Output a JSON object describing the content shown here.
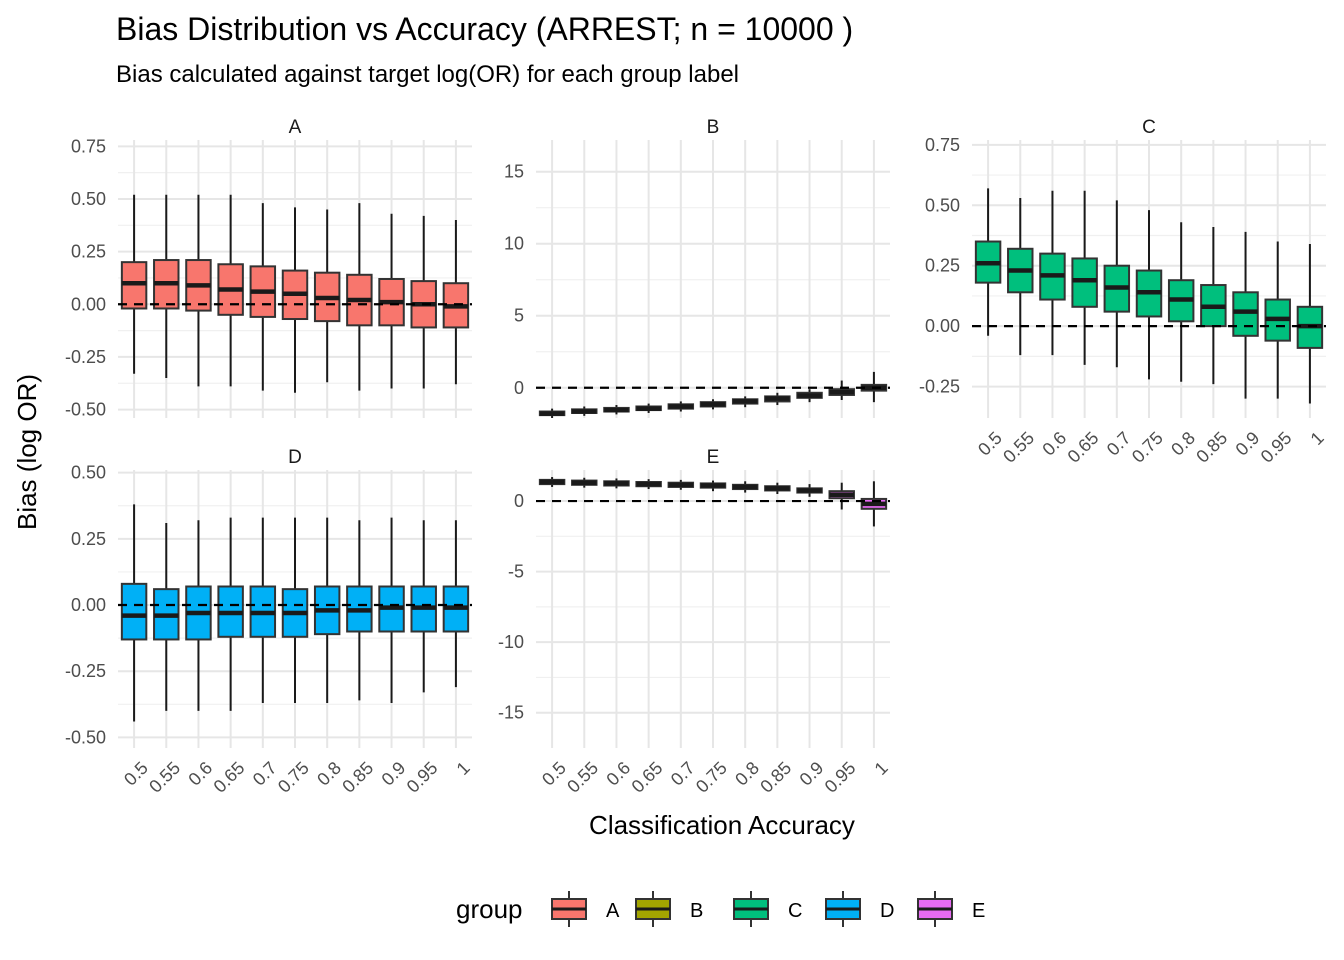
{
  "chart_data": {
    "type": "boxplot",
    "title": "Bias Distribution vs Accuracy (ARREST; n = 10000 )",
    "subtitle": "Bias calculated against target log(OR) for each group label",
    "xlabel": "Classification Accuracy",
    "ylabel": "Bias (log OR)",
    "categories": [
      "0.5",
      "0.55",
      "0.6",
      "0.65",
      "0.7",
      "0.75",
      "0.8",
      "0.85",
      "0.9",
      "0.95",
      "1"
    ],
    "reference_line": 0,
    "grid": true,
    "legend": {
      "title": "group",
      "placement": "bottom",
      "items": [
        {
          "label": "A",
          "color": "#F8766D"
        },
        {
          "label": "B",
          "color": "#A3A500"
        },
        {
          "label": "C",
          "color": "#00BF7D"
        },
        {
          "label": "D",
          "color": "#00B0F6"
        },
        {
          "label": "E",
          "color": "#E76BF3"
        }
      ]
    },
    "facets": [
      {
        "label": "A",
        "ylim": [
          -0.54,
          0.78
        ],
        "yticks": [
          "-0.50",
          "-0.25",
          "0.00",
          "0.25",
          "0.50",
          "0.75"
        ],
        "show_x_ticks": false,
        "boxes": [
          {
            "group": "A",
            "lower": -0.33,
            "q1": -0.02,
            "median": 0.1,
            "q3": 0.2,
            "upper": 0.52
          },
          {
            "group": "A",
            "lower": -0.35,
            "q1": -0.02,
            "median": 0.1,
            "q3": 0.21,
            "upper": 0.52
          },
          {
            "group": "A",
            "lower": -0.39,
            "q1": -0.03,
            "median": 0.09,
            "q3": 0.21,
            "upper": 0.52
          },
          {
            "group": "A",
            "lower": -0.39,
            "q1": -0.05,
            "median": 0.07,
            "q3": 0.19,
            "upper": 0.52
          },
          {
            "group": "A",
            "lower": -0.41,
            "q1": -0.06,
            "median": 0.06,
            "q3": 0.18,
            "upper": 0.48
          },
          {
            "group": "A",
            "lower": -0.42,
            "q1": -0.07,
            "median": 0.05,
            "q3": 0.16,
            "upper": 0.46
          },
          {
            "group": "A",
            "lower": -0.37,
            "q1": -0.08,
            "median": 0.03,
            "q3": 0.15,
            "upper": 0.45
          },
          {
            "group": "A",
            "lower": -0.41,
            "q1": -0.1,
            "median": 0.02,
            "q3": 0.14,
            "upper": 0.48
          },
          {
            "group": "A",
            "lower": -0.4,
            "q1": -0.1,
            "median": 0.01,
            "q3": 0.12,
            "upper": 0.43
          },
          {
            "group": "A",
            "lower": -0.4,
            "q1": -0.11,
            "median": 0.0,
            "q3": 0.11,
            "upper": 0.42
          },
          {
            "group": "A",
            "lower": -0.38,
            "q1": -0.11,
            "median": -0.01,
            "q3": 0.1,
            "upper": 0.4
          }
        ]
      },
      {
        "label": "B",
        "ylim": [
          -2.1,
          17.2
        ],
        "yticks": [
          "0",
          "5",
          "10",
          "15"
        ],
        "show_x_ticks": false,
        "boxes": [
          {
            "group": "B",
            "lower": -2.1,
            "q1": -1.9,
            "median": -1.8,
            "q3": -1.65,
            "upper": -1.45
          },
          {
            "group": "B",
            "lower": -1.95,
            "q1": -1.75,
            "median": -1.65,
            "q3": -1.5,
            "upper": -1.3
          },
          {
            "group": "B",
            "lower": -1.85,
            "q1": -1.65,
            "median": -1.55,
            "q3": -1.4,
            "upper": -1.2
          },
          {
            "group": "B",
            "lower": -1.75,
            "q1": -1.55,
            "median": -1.45,
            "q3": -1.3,
            "upper": -1.1
          },
          {
            "group": "B",
            "lower": -1.65,
            "q1": -1.45,
            "median": -1.3,
            "q3": -1.15,
            "upper": -0.95
          },
          {
            "group": "B",
            "lower": -1.5,
            "q1": -1.3,
            "median": -1.15,
            "q3": -1.0,
            "upper": -0.8
          },
          {
            "group": "B",
            "lower": -1.35,
            "q1": -1.1,
            "median": -0.95,
            "q3": -0.8,
            "upper": -0.6
          },
          {
            "group": "B",
            "lower": -1.2,
            "q1": -0.95,
            "median": -0.75,
            "q3": -0.6,
            "upper": -0.35
          },
          {
            "group": "B",
            "lower": -1.0,
            "q1": -0.7,
            "median": -0.55,
            "q3": -0.35,
            "upper": -0.1
          },
          {
            "group": "B",
            "lower": -0.85,
            "q1": -0.5,
            "median": -0.3,
            "q3": -0.1,
            "upper": 0.5
          },
          {
            "group": "B",
            "lower": -1.0,
            "q1": -0.2,
            "median": 0.0,
            "q3": 0.2,
            "upper": 1.1
          }
        ]
      },
      {
        "label": "C",
        "ylim": [
          -0.38,
          0.77
        ],
        "yticks": [
          "-0.25",
          "0.00",
          "0.25",
          "0.50",
          "0.75"
        ],
        "show_x_ticks": true,
        "boxes": [
          {
            "group": "C",
            "lower": -0.04,
            "q1": 0.18,
            "median": 0.26,
            "q3": 0.35,
            "upper": 0.57
          },
          {
            "group": "C",
            "lower": -0.12,
            "q1": 0.14,
            "median": 0.23,
            "q3": 0.32,
            "upper": 0.53
          },
          {
            "group": "C",
            "lower": -0.12,
            "q1": 0.11,
            "median": 0.21,
            "q3": 0.3,
            "upper": 0.56
          },
          {
            "group": "C",
            "lower": -0.16,
            "q1": 0.08,
            "median": 0.19,
            "q3": 0.28,
            "upper": 0.56
          },
          {
            "group": "C",
            "lower": -0.17,
            "q1": 0.06,
            "median": 0.16,
            "q3": 0.25,
            "upper": 0.52
          },
          {
            "group": "C",
            "lower": -0.22,
            "q1": 0.04,
            "median": 0.14,
            "q3": 0.23,
            "upper": 0.48
          },
          {
            "group": "C",
            "lower": -0.23,
            "q1": 0.02,
            "median": 0.11,
            "q3": 0.19,
            "upper": 0.43
          },
          {
            "group": "C",
            "lower": -0.24,
            "q1": 0.0,
            "median": 0.08,
            "q3": 0.17,
            "upper": 0.41
          },
          {
            "group": "C",
            "lower": -0.3,
            "q1": -0.04,
            "median": 0.06,
            "q3": 0.14,
            "upper": 0.39
          },
          {
            "group": "C",
            "lower": -0.3,
            "q1": -0.06,
            "median": 0.03,
            "q3": 0.11,
            "upper": 0.35
          },
          {
            "group": "C",
            "lower": -0.32,
            "q1": -0.09,
            "median": 0.0,
            "q3": 0.08,
            "upper": 0.34
          }
        ]
      },
      {
        "label": "D",
        "ylim": [
          -0.54,
          0.51
        ],
        "yticks": [
          "-0.50",
          "-0.25",
          "0.00",
          "0.25",
          "0.50"
        ],
        "show_x_ticks": true,
        "boxes": [
          {
            "group": "D",
            "lower": -0.44,
            "q1": -0.13,
            "median": -0.04,
            "q3": 0.08,
            "upper": 0.38
          },
          {
            "group": "D",
            "lower": -0.4,
            "q1": -0.13,
            "median": -0.04,
            "q3": 0.06,
            "upper": 0.31
          },
          {
            "group": "D",
            "lower": -0.4,
            "q1": -0.13,
            "median": -0.03,
            "q3": 0.07,
            "upper": 0.32
          },
          {
            "group": "D",
            "lower": -0.4,
            "q1": -0.12,
            "median": -0.03,
            "q3": 0.07,
            "upper": 0.33
          },
          {
            "group": "D",
            "lower": -0.37,
            "q1": -0.12,
            "median": -0.03,
            "q3": 0.07,
            "upper": 0.33
          },
          {
            "group": "D",
            "lower": -0.37,
            "q1": -0.12,
            "median": -0.03,
            "q3": 0.06,
            "upper": 0.33
          },
          {
            "group": "D",
            "lower": -0.37,
            "q1": -0.11,
            "median": -0.02,
            "q3": 0.07,
            "upper": 0.33
          },
          {
            "group": "D",
            "lower": -0.36,
            "q1": -0.1,
            "median": -0.02,
            "q3": 0.07,
            "upper": 0.32
          },
          {
            "group": "D",
            "lower": -0.37,
            "q1": -0.1,
            "median": -0.01,
            "q3": 0.07,
            "upper": 0.33
          },
          {
            "group": "D",
            "lower": -0.33,
            "q1": -0.1,
            "median": -0.01,
            "q3": 0.07,
            "upper": 0.32
          },
          {
            "group": "D",
            "lower": -0.31,
            "q1": -0.1,
            "median": -0.01,
            "q3": 0.07,
            "upper": 0.32
          }
        ]
      },
      {
        "label": "E",
        "ylim": [
          -17.5,
          2.2
        ],
        "yticks": [
          "-15",
          "-10",
          "-5",
          "0"
        ],
        "show_x_ticks": true,
        "boxes": [
          {
            "group": "E",
            "lower": 1.0,
            "q1": 1.2,
            "median": 1.35,
            "q3": 1.5,
            "upper": 1.7
          },
          {
            "group": "E",
            "lower": 0.95,
            "q1": 1.15,
            "median": 1.3,
            "q3": 1.45,
            "upper": 1.65
          },
          {
            "group": "E",
            "lower": 0.9,
            "q1": 1.1,
            "median": 1.25,
            "q3": 1.4,
            "upper": 1.6
          },
          {
            "group": "E",
            "lower": 0.85,
            "q1": 1.05,
            "median": 1.2,
            "q3": 1.35,
            "upper": 1.55
          },
          {
            "group": "E",
            "lower": 0.8,
            "q1": 1.0,
            "median": 1.15,
            "q3": 1.3,
            "upper": 1.5
          },
          {
            "group": "E",
            "lower": 0.7,
            "q1": 0.95,
            "median": 1.1,
            "q3": 1.25,
            "upper": 1.45
          },
          {
            "group": "E",
            "lower": 0.6,
            "q1": 0.85,
            "median": 1.0,
            "q3": 1.15,
            "upper": 1.4
          },
          {
            "group": "E",
            "lower": 0.5,
            "q1": 0.75,
            "median": 0.9,
            "q3": 1.05,
            "upper": 1.3
          },
          {
            "group": "E",
            "lower": 0.3,
            "q1": 0.6,
            "median": 0.75,
            "q3": 0.9,
            "upper": 1.2
          },
          {
            "group": "E",
            "lower": -0.6,
            "q1": 0.2,
            "median": 0.45,
            "q3": 0.7,
            "upper": 1.3
          },
          {
            "group": "E",
            "lower": -1.8,
            "q1": -0.55,
            "median": -0.2,
            "q3": 0.15,
            "upper": 1.4
          }
        ]
      }
    ]
  }
}
